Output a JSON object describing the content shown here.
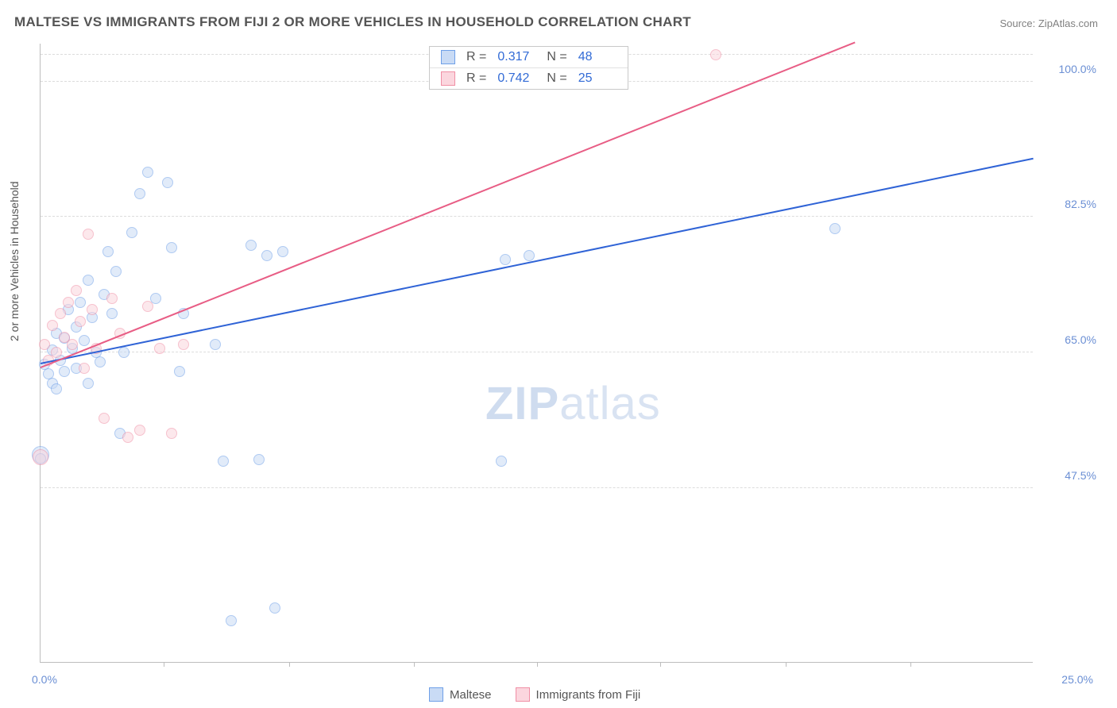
{
  "title": "MALTESE VS IMMIGRANTS FROM FIJI 2 OR MORE VEHICLES IN HOUSEHOLD CORRELATION CHART",
  "source": "Source: ZipAtlas.com",
  "watermark": {
    "left": "ZIP",
    "right": "atlas"
  },
  "chart": {
    "type": "scatter",
    "ylabel": "2 or more Vehicles in Household",
    "xlim": [
      0,
      25
    ],
    "ylim": [
      25,
      105
    ],
    "xlim_labels": [
      "0.0%",
      "25.0%"
    ],
    "xtick_positions": [
      3.1,
      6.25,
      9.4,
      12.5,
      15.6,
      18.75,
      21.9
    ],
    "yticks": [
      {
        "v": 47.5,
        "label": "47.5%"
      },
      {
        "v": 65.0,
        "label": "65.0%"
      },
      {
        "v": 82.5,
        "label": "82.5%"
      },
      {
        "v": 100.0,
        "label": "100.0%"
      }
    ],
    "ytop_gridline": 103.5,
    "background_color": "#ffffff",
    "grid_color": "#dcdcdc",
    "axis_color": "#bdbdbd",
    "label_color": "#6b8fd4",
    "marker_radius": 7,
    "marker_opacity": 0.55,
    "series": [
      {
        "name": "Maltese",
        "fill": "#c9dbf5",
        "stroke": "#6fa0e8",
        "R": "0.317",
        "N": "48",
        "trend": {
          "x1": 0,
          "y1": 63.5,
          "x2": 25,
          "y2": 90,
          "color": "#2f63d6",
          "width": 2
        },
        "points": [
          {
            "x": 0.0,
            "y": 51.8,
            "r": 11
          },
          {
            "x": 0.0,
            "y": 51.3
          },
          {
            "x": 0.1,
            "y": 63.5
          },
          {
            "x": 0.2,
            "y": 62.2
          },
          {
            "x": 0.3,
            "y": 61.0
          },
          {
            "x": 0.3,
            "y": 65.3
          },
          {
            "x": 0.4,
            "y": 67.5
          },
          {
            "x": 0.4,
            "y": 60.3
          },
          {
            "x": 0.5,
            "y": 64.0
          },
          {
            "x": 0.6,
            "y": 66.8
          },
          {
            "x": 0.6,
            "y": 62.5
          },
          {
            "x": 0.7,
            "y": 70.5
          },
          {
            "x": 0.8,
            "y": 65.5
          },
          {
            "x": 0.9,
            "y": 68.3
          },
          {
            "x": 0.9,
            "y": 63.0
          },
          {
            "x": 1.0,
            "y": 71.5
          },
          {
            "x": 1.1,
            "y": 66.5
          },
          {
            "x": 1.2,
            "y": 74.3
          },
          {
            "x": 1.2,
            "y": 61.0
          },
          {
            "x": 1.3,
            "y": 69.5
          },
          {
            "x": 1.4,
            "y": 65.0
          },
          {
            "x": 1.5,
            "y": 63.8
          },
          {
            "x": 1.6,
            "y": 72.5
          },
          {
            "x": 1.7,
            "y": 78.0
          },
          {
            "x": 1.8,
            "y": 70.0
          },
          {
            "x": 1.9,
            "y": 75.5
          },
          {
            "x": 2.0,
            "y": 54.5
          },
          {
            "x": 2.1,
            "y": 65.0
          },
          {
            "x": 2.3,
            "y": 80.5
          },
          {
            "x": 2.5,
            "y": 85.5
          },
          {
            "x": 2.7,
            "y": 88.3
          },
          {
            "x": 2.9,
            "y": 72.0
          },
          {
            "x": 3.2,
            "y": 87.0
          },
          {
            "x": 3.3,
            "y": 78.5
          },
          {
            "x": 3.5,
            "y": 62.5
          },
          {
            "x": 3.6,
            "y": 70.0
          },
          {
            "x": 4.4,
            "y": 66.0
          },
          {
            "x": 4.6,
            "y": 51.0
          },
          {
            "x": 4.8,
            "y": 30.3
          },
          {
            "x": 5.3,
            "y": 78.8
          },
          {
            "x": 5.5,
            "y": 51.2
          },
          {
            "x": 5.7,
            "y": 77.5
          },
          {
            "x": 5.9,
            "y": 32.0
          },
          {
            "x": 6.1,
            "y": 78.0
          },
          {
            "x": 11.6,
            "y": 51.0
          },
          {
            "x": 11.7,
            "y": 77.0
          },
          {
            "x": 12.3,
            "y": 77.5
          },
          {
            "x": 20.0,
            "y": 81.0
          }
        ]
      },
      {
        "name": "Immigrants from Fiji",
        "fill": "#fbd6de",
        "stroke": "#f08fa5",
        "R": "0.742",
        "N": "25",
        "trend": {
          "x1": 0,
          "y1": 63.0,
          "x2": 20.5,
          "y2": 105,
          "color": "#e85d85",
          "width": 2
        },
        "points": [
          {
            "x": 0.0,
            "y": 51.5,
            "r": 10
          },
          {
            "x": 0.1,
            "y": 66.0
          },
          {
            "x": 0.2,
            "y": 64.0
          },
          {
            "x": 0.3,
            "y": 68.5
          },
          {
            "x": 0.4,
            "y": 65.0
          },
          {
            "x": 0.5,
            "y": 70.0
          },
          {
            "x": 0.6,
            "y": 67.0
          },
          {
            "x": 0.7,
            "y": 71.5
          },
          {
            "x": 0.8,
            "y": 66.0
          },
          {
            "x": 0.9,
            "y": 73.0
          },
          {
            "x": 1.0,
            "y": 69.0
          },
          {
            "x": 1.1,
            "y": 63.0
          },
          {
            "x": 1.2,
            "y": 80.3
          },
          {
            "x": 1.3,
            "y": 70.5
          },
          {
            "x": 1.4,
            "y": 65.5
          },
          {
            "x": 1.6,
            "y": 56.5
          },
          {
            "x": 1.8,
            "y": 72.0
          },
          {
            "x": 2.0,
            "y": 67.5
          },
          {
            "x": 2.2,
            "y": 54.0
          },
          {
            "x": 2.5,
            "y": 55.0
          },
          {
            "x": 2.7,
            "y": 71.0
          },
          {
            "x": 3.0,
            "y": 65.5
          },
          {
            "x": 3.3,
            "y": 54.5
          },
          {
            "x": 3.6,
            "y": 66.0
          },
          {
            "x": 17.0,
            "y": 103.5
          }
        ]
      }
    ]
  },
  "legend": {
    "series1": "Maltese",
    "series2": "Immigrants from Fiji"
  }
}
